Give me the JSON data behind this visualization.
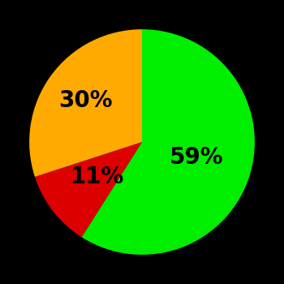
{
  "slices": [
    59,
    11,
    30
  ],
  "colors": [
    "#00ee00",
    "#dd0000",
    "#ffaa00"
  ],
  "labels": [
    "59%",
    "11%",
    "30%"
  ],
  "background_color": "#000000",
  "startangle": 90,
  "label_fontsize": 20,
  "label_color": "#000000",
  "label_radii": [
    0.5,
    0.5,
    0.62
  ]
}
